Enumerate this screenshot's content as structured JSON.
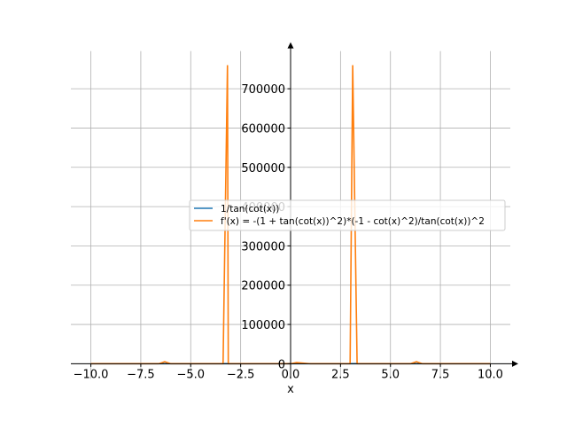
{
  "chart_data": {
    "type": "line",
    "x_label": "x",
    "x": [
      -10,
      -8,
      -6.6,
      -6.3,
      -6.0,
      -4,
      -3.38,
      -3.16,
      -3.12,
      -2.9,
      -1,
      0,
      0.3,
      1,
      2.9,
      2.98,
      3.11,
      3.33,
      3.5,
      6,
      6.3,
      6.6,
      8,
      10
    ],
    "series": [
      {
        "name": "1/tan(cot(x))",
        "color": "#1f77b4",
        "values": [
          0,
          0,
          0,
          0,
          0,
          0,
          0,
          0,
          0,
          0,
          0,
          0,
          0,
          0,
          0,
          0,
          0,
          0,
          0,
          0,
          0,
          0,
          0,
          0
        ]
      },
      {
        "name": "f'(x) = -(1 + tan(cot(x))^2)*(-1 - cot(x)^2)/tan(cot(x))^2",
        "color": "#ff7f0e",
        "values": [
          0,
          0,
          0,
          5000,
          0,
          0,
          0,
          760000,
          0,
          0,
          0,
          0,
          3000,
          0,
          0,
          0,
          760000,
          0,
          0,
          0,
          5000,
          0,
          0,
          0
        ]
      }
    ],
    "xlim": [
      -11,
      11
    ],
    "ylim": [
      -38000,
      796000
    ],
    "xticks": [
      {
        "value": -10,
        "label": "−10.0"
      },
      {
        "value": -7.5,
        "label": "−7.5"
      },
      {
        "value": -5,
        "label": "−5.0"
      },
      {
        "value": -2.5,
        "label": "−2.5"
      },
      {
        "value": 0,
        "label": "0.0"
      },
      2.5,
      {
        "value": 5,
        "label": "5.0"
      },
      7.5,
      {
        "value": 10,
        "label": "10.0"
      }
    ],
    "yticks": [
      0,
      100000,
      200000,
      300000,
      400000,
      500000,
      600000,
      700000
    ],
    "grid": true
  }
}
